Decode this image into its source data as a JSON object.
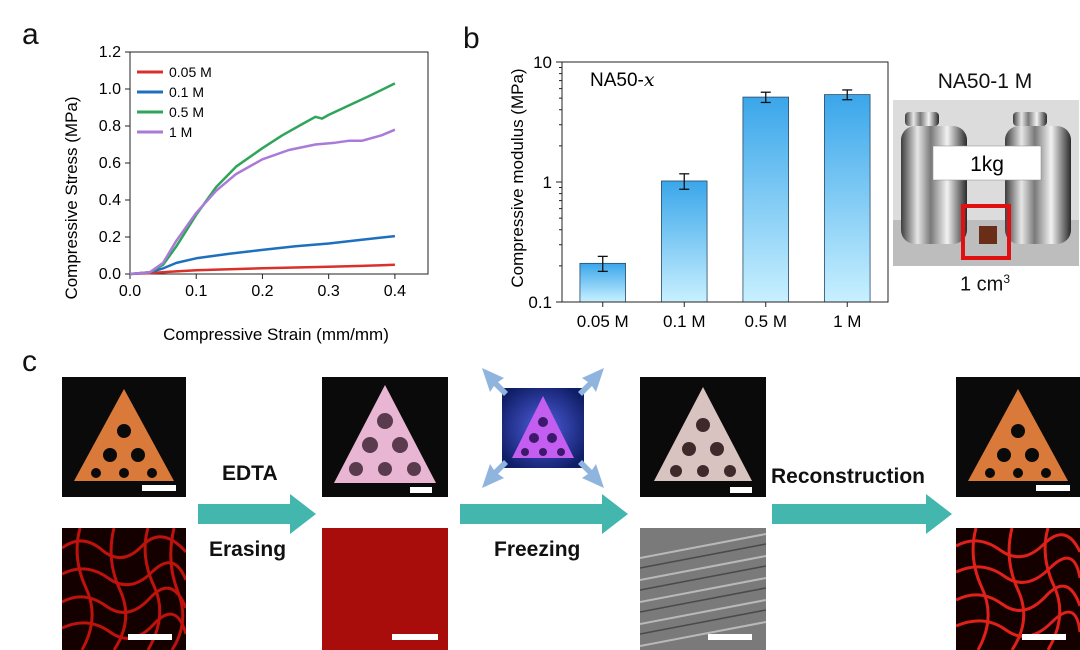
{
  "panels": {
    "a": "a",
    "b": "b",
    "c": "c"
  },
  "chart_data": [
    {
      "type": "line",
      "xlabel": "Compressive Strain (mm/mm)",
      "ylabel": "Compressive Stress (MPa)",
      "xlim": [
        0,
        0.45
      ],
      "ylim": [
        0,
        1.2
      ],
      "xticks": [
        "0.0",
        "0.1",
        "0.2",
        "0.3",
        "0.4"
      ],
      "yticks": [
        "0.0",
        "0.2",
        "0.4",
        "0.6",
        "0.8",
        "1.0",
        "1.2"
      ],
      "legend_position": "top-left",
      "series": [
        {
          "name": "0.05 M",
          "color": "#d9302c",
          "x": [
            0,
            0.03,
            0.06,
            0.1,
            0.15,
            0.2,
            0.25,
            0.3,
            0.35,
            0.4
          ],
          "y": [
            0,
            0.005,
            0.012,
            0.02,
            0.026,
            0.031,
            0.035,
            0.039,
            0.044,
            0.05
          ]
        },
        {
          "name": "0.1 M",
          "color": "#1f6fbf",
          "x": [
            0,
            0.03,
            0.05,
            0.07,
            0.1,
            0.15,
            0.2,
            0.25,
            0.3,
            0.35,
            0.4
          ],
          "y": [
            0,
            0.01,
            0.03,
            0.06,
            0.085,
            0.11,
            0.13,
            0.15,
            0.165,
            0.185,
            0.205
          ]
        },
        {
          "name": "0.5 M",
          "color": "#2ea55a",
          "x": [
            0,
            0.03,
            0.05,
            0.07,
            0.1,
            0.13,
            0.16,
            0.2,
            0.23,
            0.26,
            0.28,
            0.29,
            0.3,
            0.33,
            0.36,
            0.4
          ],
          "y": [
            0,
            0.01,
            0.05,
            0.15,
            0.32,
            0.47,
            0.58,
            0.68,
            0.75,
            0.81,
            0.85,
            0.84,
            0.86,
            0.91,
            0.96,
            1.03
          ]
        },
        {
          "name": "1 M",
          "color": "#a97ad8",
          "x": [
            0,
            0.03,
            0.05,
            0.07,
            0.1,
            0.13,
            0.16,
            0.2,
            0.24,
            0.28,
            0.31,
            0.33,
            0.35,
            0.38,
            0.4
          ],
          "y": [
            0,
            0.01,
            0.06,
            0.18,
            0.33,
            0.45,
            0.54,
            0.62,
            0.67,
            0.7,
            0.71,
            0.72,
            0.72,
            0.75,
            0.78
          ]
        }
      ]
    },
    {
      "type": "bar",
      "yscale": "log",
      "annotation": "NA50-",
      "annotation_var": "x",
      "ylabel": "Compressive modulus (MPa)",
      "ylim": [
        0.1,
        10
      ],
      "yticks": [
        "0.1",
        "1",
        "10"
      ],
      "categories": [
        "0.05 M",
        "0.1 M",
        "0.5 M",
        "1 M"
      ],
      "values": [
        0.21,
        1.02,
        5.1,
        5.35
      ],
      "error": [
        0.03,
        0.15,
        0.5,
        0.5
      ]
    }
  ],
  "inset": {
    "title": "NA50-1 M",
    "weight_label": "1kg",
    "size_label": "1 cm",
    "size_superscript": "3"
  },
  "process": {
    "steps": [
      {
        "label": "EDTA"
      },
      {
        "label": "Erasing"
      },
      {
        "label": "Freezing"
      },
      {
        "label": "Reconstruction"
      }
    ],
    "arrow_color": "#43b6ad",
    "photo_colors": {
      "orange": "#d97a3a",
      "pink": "#e8b6d2",
      "frozen": "#9b4bd8",
      "white": "#d9c3c0",
      "red_network": "#c8120e"
    }
  }
}
